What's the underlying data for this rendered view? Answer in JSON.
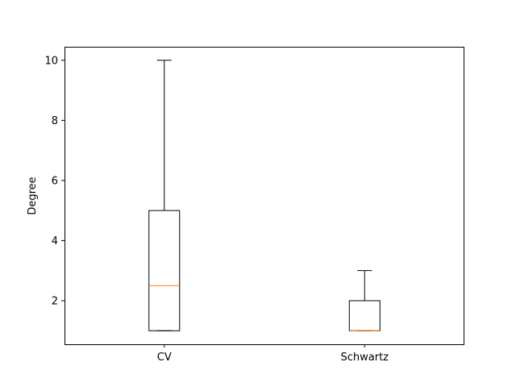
{
  "chart_data": {
    "type": "box",
    "categories": [
      "CV",
      "Schwartz"
    ],
    "boxes": [
      {
        "category": "CV",
        "whisker_low": 1,
        "q1": 1,
        "median": 2.5,
        "q3": 5,
        "whisker_high": 10
      },
      {
        "category": "Schwartz",
        "whisker_low": 1,
        "q1": 1,
        "median": 1,
        "q3": 2,
        "whisker_high": 3
      }
    ],
    "xlabel": "",
    "ylabel": "Degree",
    "ylim": [
      0.55,
      10.45
    ],
    "yticks": [
      2,
      4,
      6,
      8,
      10
    ],
    "grid": false,
    "colors": {
      "box": "#000000",
      "median": "#ff7f0e",
      "axes": "#000000"
    }
  }
}
